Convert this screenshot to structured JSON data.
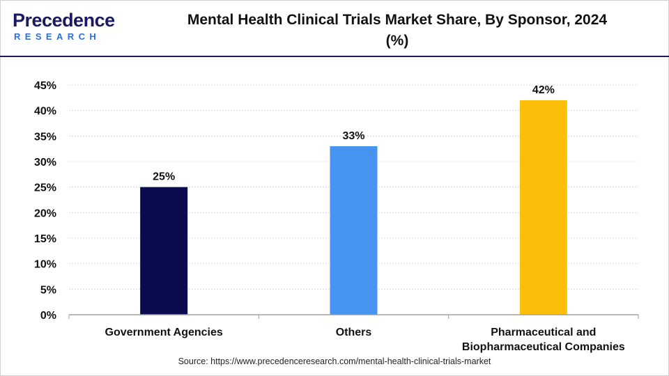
{
  "brand": {
    "name": "Precedence",
    "sub": "RESEARCH"
  },
  "header": {
    "title_line1": "Mental Health Clinical Trials Market Share, By Sponsor, 2024",
    "title_line2": "(%)"
  },
  "footer": {
    "source": "Source: https://www.precedenceresearch.com/mental-health-clinical-trials-market"
  },
  "chart_data": {
    "type": "bar",
    "title": "Mental Health Clinical Trials Market Share, By Sponsor, 2024 (%)",
    "xlabel": "",
    "ylabel": "",
    "categories": [
      [
        "Government Agencies"
      ],
      [
        "Others"
      ],
      [
        "Pharmaceutical and",
        "Biopharmaceutical Companies"
      ]
    ],
    "values": [
      25,
      33,
      42
    ],
    "data_labels": [
      "25%",
      "33%",
      "42%"
    ],
    "colors": [
      "#0b0b4f",
      "#4794f0",
      "#fbbf0b"
    ],
    "ylim": [
      0,
      45
    ],
    "yticks": [
      0,
      5,
      10,
      15,
      20,
      25,
      30,
      35,
      40,
      45
    ],
    "ytick_labels": [
      "0%",
      "5%",
      "10%",
      "15%",
      "20%",
      "25%",
      "30%",
      "35%",
      "40%",
      "45%"
    ],
    "grid": true,
    "legend": "none"
  }
}
